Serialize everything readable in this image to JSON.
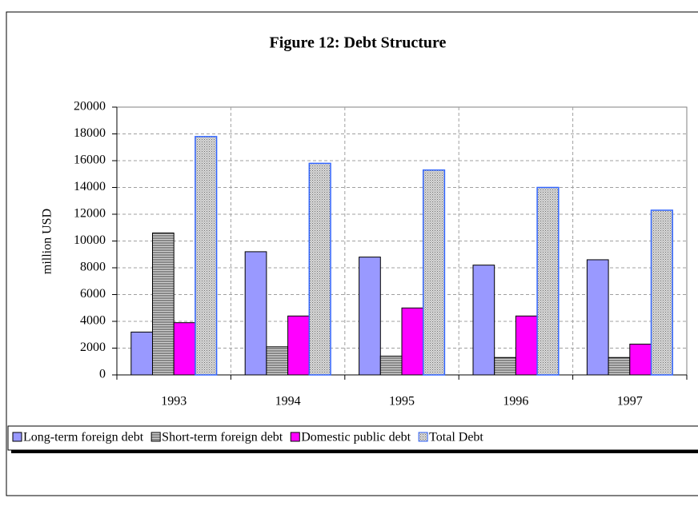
{
  "chart_data": {
    "type": "bar",
    "title": "Figure 12: Debt Structure",
    "y_label": "million USD",
    "categories": [
      "1993",
      "1994",
      "1995",
      "1996",
      "1997"
    ],
    "series": [
      {
        "name": "Long-term foreign debt",
        "color": "#9999ff",
        "values": [
          3200,
          9200,
          8800,
          8200,
          8600
        ]
      },
      {
        "name": "Short-term foreign debt",
        "color": "#b0b0b0",
        "pattern": "horizontal-lines",
        "values": [
          10600,
          2100,
          1400,
          1300,
          1300
        ]
      },
      {
        "name": "Domestic public debt",
        "color": "#ff00ff",
        "values": [
          3900,
          4400,
          5000,
          4400,
          2300
        ]
      },
      {
        "name": "Total Debt",
        "color": "#c0c0c0",
        "border": "#3366ff",
        "pattern": "dots",
        "values": [
          17800,
          15800,
          15300,
          14000,
          12300
        ]
      }
    ],
    "ylim": [
      0,
      20000
    ],
    "yticks": [
      0,
      2000,
      4000,
      6000,
      8000,
      10000,
      12000,
      14000,
      16000,
      18000,
      20000
    ],
    "grid": true,
    "legend": "bottom"
  }
}
